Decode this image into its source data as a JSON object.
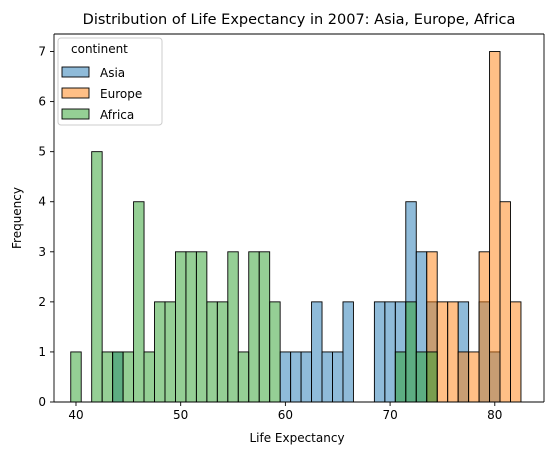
{
  "chart_data": {
    "type": "bar",
    "subtype": "histogram",
    "title": "Distribution of Life Expectancy in 2007: Asia, Europe, Africa",
    "xlabel": "Life Expectancy",
    "ylabel": "Frequency",
    "xlim": [
      37.9,
      84.7
    ],
    "ylim": [
      0,
      7.35
    ],
    "xticks": [
      40,
      50,
      60,
      70,
      80
    ],
    "yticks": [
      0,
      1,
      2,
      3,
      4,
      5,
      6,
      7
    ],
    "grid": false,
    "bin_width": 1.0,
    "bin_starts": [
      39.5,
      40.5,
      41.5,
      42.5,
      43.5,
      44.5,
      45.5,
      46.5,
      47.5,
      48.5,
      49.5,
      50.5,
      51.5,
      52.5,
      53.5,
      54.5,
      55.5,
      56.5,
      57.5,
      58.5,
      59.5,
      60.5,
      61.5,
      62.5,
      63.5,
      64.5,
      65.5,
      66.5,
      67.5,
      68.5,
      69.5,
      70.5,
      71.5,
      72.5,
      73.5,
      74.5,
      75.5,
      76.5,
      77.5,
      78.5,
      79.5,
      80.5,
      81.5
    ],
    "legend": {
      "title": "continent",
      "position": "top-left",
      "entries": [
        "Asia",
        "Europe",
        "Africa"
      ]
    },
    "series": [
      {
        "name": "Asia",
        "color": "#1f77b4",
        "values": [
          0,
          0,
          0,
          0,
          1,
          0,
          0,
          0,
          0,
          0,
          0,
          0,
          0,
          0,
          0,
          0,
          0,
          0,
          0,
          0,
          1,
          1,
          1,
          2,
          1,
          1,
          2,
          0,
          0,
          2,
          2,
          2,
          4,
          3,
          2,
          0,
          0,
          2,
          0,
          2,
          1,
          0,
          0
        ]
      },
      {
        "name": "Europe",
        "color": "#ff7f0e",
        "values": [
          0,
          0,
          0,
          0,
          0,
          0,
          0,
          0,
          0,
          0,
          0,
          0,
          0,
          0,
          0,
          0,
          0,
          0,
          0,
          0,
          0,
          0,
          0,
          0,
          0,
          0,
          0,
          0,
          0,
          0,
          0,
          0,
          0,
          0,
          3,
          2,
          2,
          1,
          1,
          3,
          7,
          4,
          2
        ]
      },
      {
        "name": "Africa",
        "color": "#2ca02c",
        "values": [
          1,
          0,
          5,
          1,
          1,
          1,
          4,
          1,
          2,
          2,
          3,
          3,
          3,
          2,
          2,
          3,
          1,
          3,
          3,
          2,
          0,
          0,
          0,
          0,
          0,
          0,
          0,
          0,
          0,
          0,
          0,
          1,
          2,
          1,
          1,
          0,
          0,
          0,
          0,
          0,
          0,
          0,
          0
        ]
      }
    ]
  }
}
